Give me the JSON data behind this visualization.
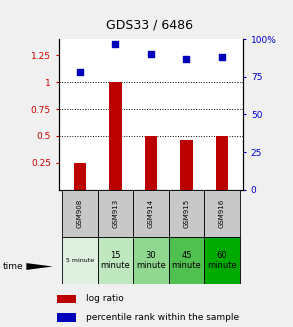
{
  "title": "GDS33 / 6486",
  "samples": [
    "GSM908",
    "GSM913",
    "GSM914",
    "GSM915",
    "GSM916"
  ],
  "time_labels": [
    "5 minute",
    "15\nminute",
    "30\nminute",
    "45\nminute",
    "60\nminute"
  ],
  "log_ratio": [
    0.25,
    1.0,
    0.5,
    0.46,
    0.5
  ],
  "percentile_rank_pct": [
    78,
    97,
    90,
    87,
    88
  ],
  "bar_color": "#bb0000",
  "dot_color": "#0000bb",
  "ylim_left": [
    0.0,
    1.4
  ],
  "ylim_right": [
    0,
    100
  ],
  "yticks_left": [
    0.25,
    0.5,
    0.75,
    1.0,
    1.25
  ],
  "yticks_right": [
    0,
    25,
    50,
    75,
    100
  ],
  "ytick_labels_left": [
    "0.25",
    "0.5",
    "0.75",
    "1",
    "1.25"
  ],
  "ytick_labels_right": [
    "0",
    "25",
    "50",
    "75",
    "100%"
  ],
  "hlines": [
    0.5,
    0.75,
    1.0
  ],
  "background_color": "#f0f0f0",
  "plot_bg": "#ffffff",
  "sample_row_color": "#c8c8c8",
  "time_row_colors": [
    "#e0f0e0",
    "#c0e8c0",
    "#90d890",
    "#50c050",
    "#00aa00"
  ],
  "title_fontsize": 9,
  "tick_fontsize": 6.5
}
